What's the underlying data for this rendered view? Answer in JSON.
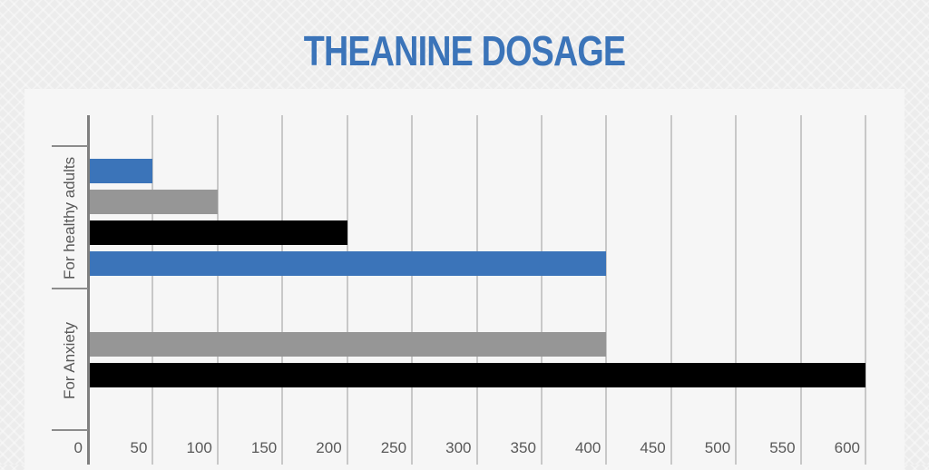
{
  "title": "THEANINE DOSAGE",
  "colors": {
    "blue": "#3b74b9",
    "gray": "#969696",
    "black": "#000000",
    "title": "#3b74b9"
  },
  "x_ticks": [
    "0",
    "50",
    "100",
    "150",
    "200",
    "250",
    "300",
    "350",
    "400",
    "450",
    "500",
    "550",
    "600"
  ],
  "categories": [
    "For healthy adults",
    "For Anxiety"
  ],
  "chart_data": {
    "type": "bar",
    "orientation": "horizontal",
    "title": "THEANINE DOSAGE",
    "xlabel": "",
    "ylabel": "",
    "xlim": [
      0,
      600
    ],
    "x_ticks": [
      0,
      50,
      100,
      150,
      200,
      250,
      300,
      350,
      400,
      450,
      500,
      550,
      600
    ],
    "grid": true,
    "legend": null,
    "categories": [
      "For healthy adults",
      "For Anxiety"
    ],
    "bars": [
      {
        "category": "For healthy adults",
        "value": 50,
        "color": "#3b74b9"
      },
      {
        "category": "For healthy adults",
        "value": 100,
        "color": "#969696"
      },
      {
        "category": "For healthy adults",
        "value": 200,
        "color": "#000000"
      },
      {
        "category": "For healthy adults",
        "value": 400,
        "color": "#3b74b9"
      },
      {
        "category": "For Anxiety",
        "value": 400,
        "color": "#969696"
      },
      {
        "category": "For Anxiety",
        "value": 600,
        "color": "#000000"
      }
    ]
  }
}
